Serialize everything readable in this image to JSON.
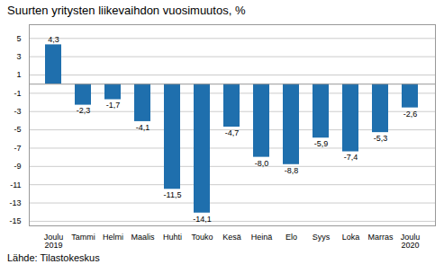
{
  "chart_data": {
    "type": "bar",
    "title": "Suurten yritysten liikevaihdon vuosimuutos, %",
    "source": "Lähde: Tilastokeskus",
    "categories": [
      "Joulu\n2019",
      "Tammi",
      "Helmi",
      "Maalis",
      "Huhti",
      "Touko",
      "Kesä",
      "Heinä",
      "Elo",
      "Syys",
      "Loka",
      "Marras",
      "Joulu\n2020"
    ],
    "values": [
      4.3,
      -2.3,
      -1.7,
      -4.1,
      -11.5,
      -14.1,
      -4.7,
      -8.0,
      -8.8,
      -5.9,
      -7.4,
      -5.3,
      -2.6
    ],
    "value_labels": [
      "4,3",
      "-2,3",
      "-1,7",
      "-4,1",
      "-11,5",
      "-14,1",
      "-4,7",
      "-8,0",
      "-8,8",
      "-5,9",
      "-7,4",
      "-5,3",
      "-2,6"
    ],
    "color": "#1F6FAD",
    "ylim": [
      -15.5,
      6.5
    ],
    "yticks": [
      5,
      3,
      1,
      -1,
      -3,
      -5,
      -7,
      -9,
      -11,
      -13,
      -15
    ],
    "grid": true,
    "data_labels": true
  }
}
